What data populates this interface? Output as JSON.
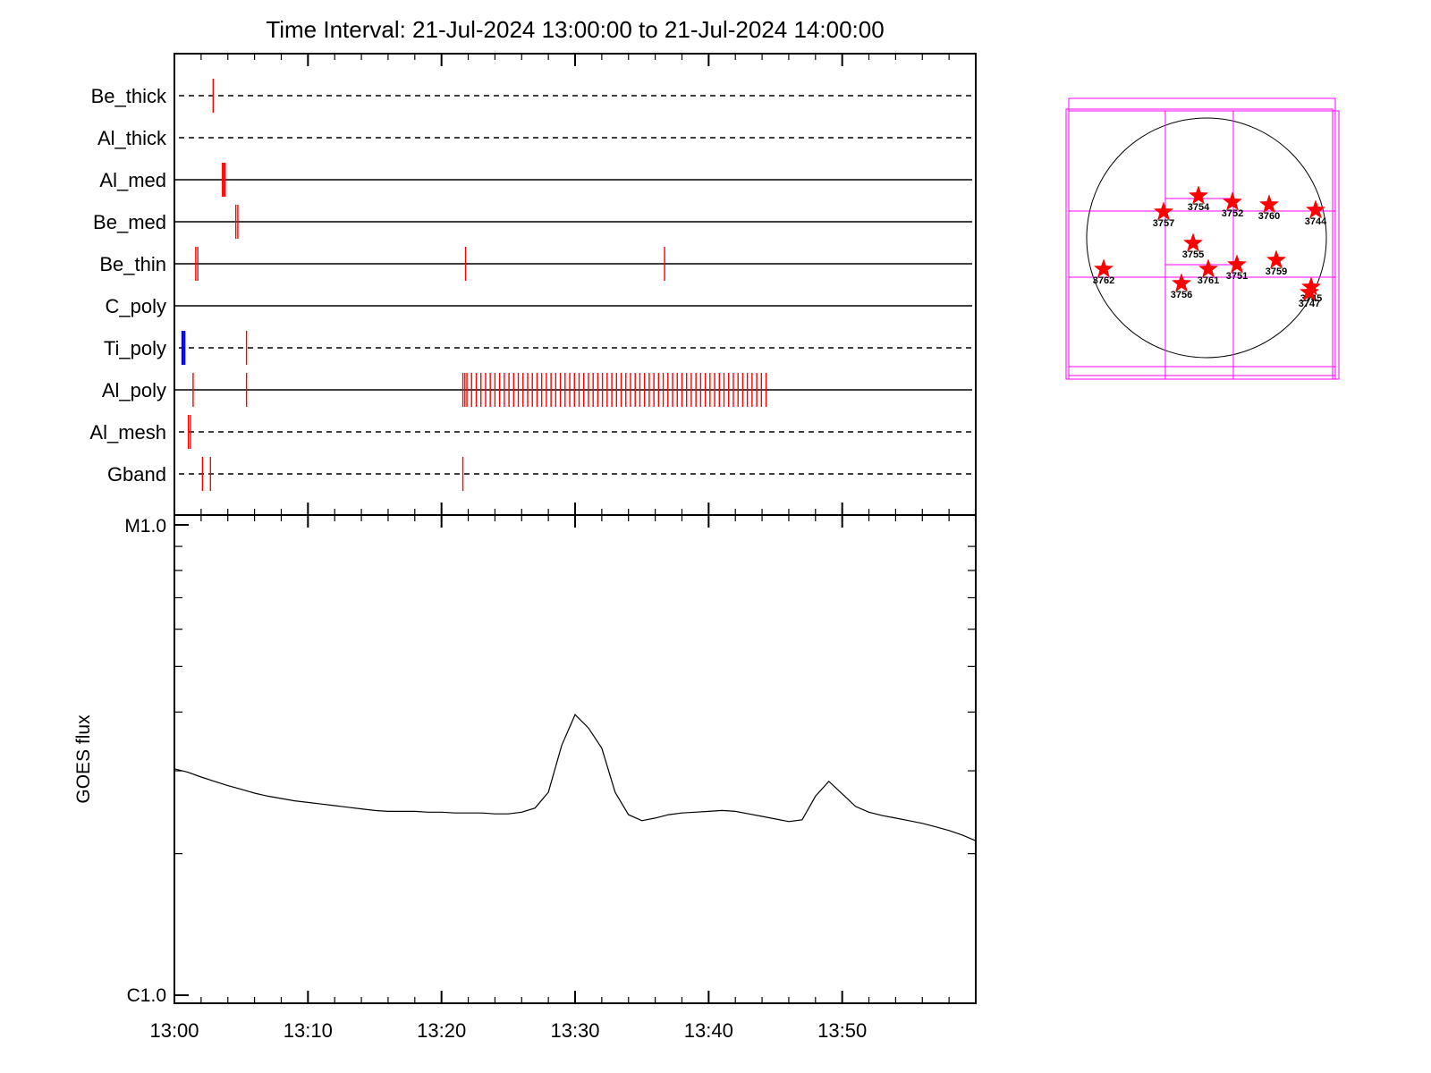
{
  "title": "Time Interval: 21-Jul-2024 13:00:00 to 21-Jul-2024 14:00:00",
  "chart_data": [
    {
      "type": "event-timeline",
      "x_range_minutes": [
        0,
        60
      ],
      "x_ticks": [
        "13:00",
        "13:10",
        "13:20",
        "13:30",
        "13:40",
        "13:50"
      ],
      "colors": {
        "exposure": "#ff0000",
        "special": "#0000ff",
        "axis": "#000000"
      },
      "rows": [
        {
          "label": "Be_thick",
          "style": "dashed",
          "events": [
            2.9
          ]
        },
        {
          "label": "Al_thick",
          "style": "dashed",
          "events": []
        },
        {
          "label": "Al_med",
          "style": "solid",
          "events": [
            3.6,
            3.7,
            3.8
          ]
        },
        {
          "label": "Be_med",
          "style": "solid",
          "events": [
            4.6,
            4.75
          ]
        },
        {
          "label": "Be_thin",
          "style": "solid",
          "events": [
            1.6,
            1.75,
            21.8,
            36.7
          ]
        },
        {
          "label": "C_poly",
          "style": "solid",
          "events": []
        },
        {
          "label": "Ti_poly",
          "style": "dashed",
          "events": [
            5.4
          ],
          "special_events": [
            0.6,
            0.75
          ]
        },
        {
          "label": "Al_poly",
          "style": "solid",
          "events": [
            1.4,
            5.4,
            21.6,
            21.75,
            21.9,
            22.25,
            22.6,
            22.95,
            23.3,
            23.65,
            24.0,
            24.35,
            24.7,
            25.05,
            25.4,
            25.75,
            26.1,
            26.45,
            26.8,
            27.15,
            27.5,
            27.85,
            28.2,
            28.55,
            28.9,
            29.25,
            29.6,
            29.95,
            30.3,
            30.65,
            31.0,
            31.35,
            31.7,
            32.05,
            32.4,
            32.75,
            33.1,
            33.45,
            33.8,
            34.15,
            34.5,
            34.85,
            35.2,
            35.55,
            35.9,
            36.25,
            36.6,
            36.95,
            37.3,
            37.65,
            38.0,
            38.35,
            38.7,
            39.05,
            39.4,
            39.75,
            40.1,
            40.45,
            40.8,
            41.15,
            41.5,
            41.85,
            42.2,
            42.55,
            42.9,
            43.25,
            43.6,
            43.95,
            44.3
          ]
        },
        {
          "label": "Al_mesh",
          "style": "dashed",
          "events": [
            1.05,
            1.2
          ]
        },
        {
          "label": "Gband",
          "style": "dashed",
          "events": [
            2.1,
            2.7,
            21.6
          ]
        }
      ]
    },
    {
      "type": "line",
      "ylabel": "GOES flux",
      "y_scale": "log",
      "y_tick_labels": [
        "M1.0",
        "C1.0"
      ],
      "y_range_watts": [
        1e-06,
        1e-05
      ],
      "x_ticks": [
        "13:00",
        "13:10",
        "13:20",
        "13:30",
        "13:40",
        "13:50"
      ],
      "x_range_minutes": [
        0,
        60
      ],
      "series": [
        {
          "x": [
            0,
            1,
            2,
            3,
            4,
            5,
            6,
            7,
            8,
            9,
            10,
            11,
            12,
            13,
            14,
            15,
            16,
            17,
            18,
            19,
            20,
            21,
            22,
            23,
            24,
            25,
            26,
            27,
            28,
            29,
            30,
            31,
            32,
            33,
            34,
            35,
            36,
            37,
            38,
            39,
            40,
            41,
            42,
            43,
            44,
            45,
            46,
            47,
            48,
            49,
            50,
            51,
            52,
            53,
            54,
            55,
            56,
            57,
            58,
            59,
            60
          ],
          "y": [
            3.03e-06,
            2.98e-06,
            2.91e-06,
            2.85e-06,
            2.79e-06,
            2.74e-06,
            2.69e-06,
            2.65e-06,
            2.62e-06,
            2.59e-06,
            2.57e-06,
            2.55e-06,
            2.53e-06,
            2.51e-06,
            2.49e-06,
            2.47e-06,
            2.46e-06,
            2.46e-06,
            2.46e-06,
            2.45e-06,
            2.45e-06,
            2.44e-06,
            2.44e-06,
            2.44e-06,
            2.43e-06,
            2.43e-06,
            2.45e-06,
            2.5e-06,
            2.7e-06,
            3.4e-06,
            3.95e-06,
            3.7e-06,
            3.35e-06,
            2.7e-06,
            2.42e-06,
            2.35e-06,
            2.38e-06,
            2.42e-06,
            2.44e-06,
            2.45e-06,
            2.46e-06,
            2.47e-06,
            2.46e-06,
            2.43e-06,
            2.4e-06,
            2.37e-06,
            2.34e-06,
            2.36e-06,
            2.65e-06,
            2.85e-06,
            2.68e-06,
            2.52e-06,
            2.45e-06,
            2.41e-06,
            2.38e-06,
            2.35e-06,
            2.32e-06,
            2.28e-06,
            2.24e-06,
            2.19e-06,
            2.13e-06
          ]
        }
      ]
    }
  ],
  "sun_map": {
    "box_color": "#ff00ff",
    "star_color": "#ff0000",
    "regions": [
      "3754",
      "3752",
      "3760",
      "3757",
      "3744",
      "3755",
      "3759",
      "3762",
      "3761",
      "3751",
      "3756",
      "3745",
      "3747"
    ]
  }
}
